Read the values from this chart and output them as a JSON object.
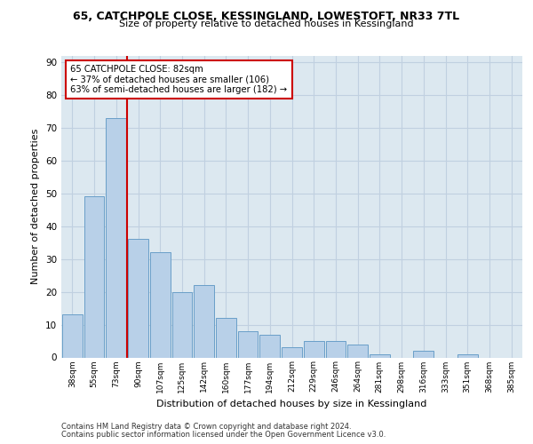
{
  "title_line1": "65, CATCHPOLE CLOSE, KESSINGLAND, LOWESTOFT, NR33 7TL",
  "title_line2": "Size of property relative to detached houses in Kessingland",
  "xlabel": "Distribution of detached houses by size in Kessingland",
  "ylabel": "Number of detached properties",
  "categories": [
    "38sqm",
    "55sqm",
    "73sqm",
    "90sqm",
    "107sqm",
    "125sqm",
    "142sqm",
    "160sqm",
    "177sqm",
    "194sqm",
    "212sqm",
    "229sqm",
    "246sqm",
    "264sqm",
    "281sqm",
    "298sqm",
    "316sqm",
    "333sqm",
    "351sqm",
    "368sqm",
    "385sqm"
  ],
  "values": [
    13,
    49,
    73,
    36,
    32,
    20,
    22,
    12,
    8,
    7,
    3,
    5,
    5,
    4,
    1,
    0,
    2,
    0,
    1,
    0,
    0
  ],
  "bar_color": "#b8d0e8",
  "bar_edge_color": "#6a9fc8",
  "vline_x": 2.5,
  "vline_color": "#cc0000",
  "annotation_text": "65 CATCHPOLE CLOSE: 82sqm\n← 37% of detached houses are smaller (106)\n63% of semi-detached houses are larger (182) →",
  "annotation_box_color": "#ffffff",
  "annotation_box_edge_color": "#cc0000",
  "ylim": [
    0,
    92
  ],
  "yticks": [
    0,
    10,
    20,
    30,
    40,
    50,
    60,
    70,
    80,
    90
  ],
  "grid_color": "#c0d0e0",
  "background_color": "#dce8f0",
  "footer_line1": "Contains HM Land Registry data © Crown copyright and database right 2024.",
  "footer_line2": "Contains public sector information licensed under the Open Government Licence v3.0."
}
